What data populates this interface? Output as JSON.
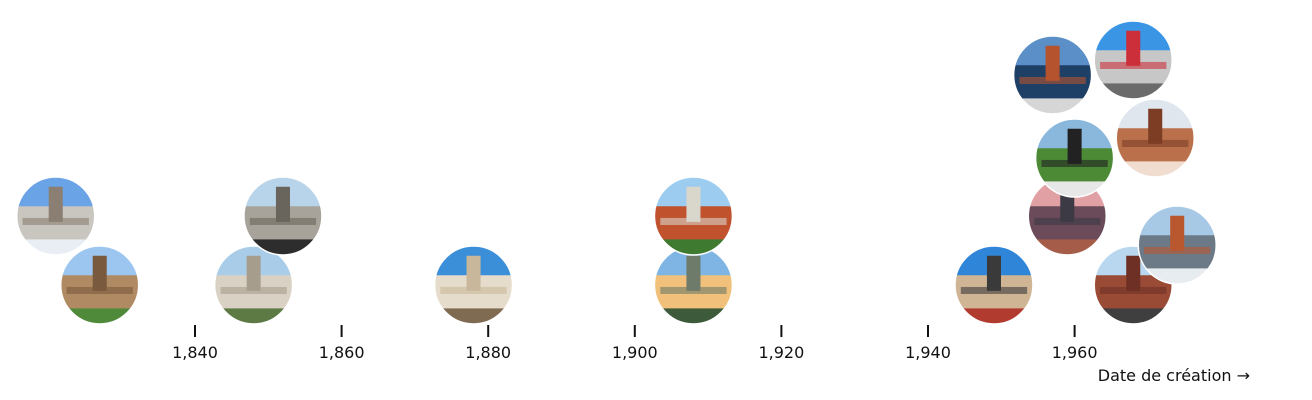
{
  "chart_data": {
    "type": "scatter",
    "subtype": "beeswarm-of-photos",
    "x_ticks": [
      "1,840",
      "1,860",
      "1,880",
      "1,900",
      "1,920",
      "1,940",
      "1,960"
    ],
    "xlim": [
      1818,
      1992
    ],
    "x_axis_title": "Date de création →",
    "grid": false,
    "points": [
      {
        "year": 1821,
        "stack": 1,
        "photo": "domed-stone-building-spring"
      },
      {
        "year": 1827,
        "stack": 0,
        "photo": "gothic-college-tower-lawn"
      },
      {
        "year": 1848,
        "stack": 0,
        "photo": "neoclassical-columned-hall"
      },
      {
        "year": 1852,
        "stack": 1,
        "photo": "victorian-stone-tower-iron-fence"
      },
      {
        "year": 1878,
        "stack": 0,
        "photo": "art-deco-pavilion-tower"
      },
      {
        "year": 1908,
        "stack": 0,
        "photo": "modern-campus-aerial-sunset"
      },
      {
        "year": 1908,
        "stack": 1,
        "photo": "university-sign-brick-monolith"
      },
      {
        "year": 1949,
        "stack": 0,
        "photo": "modern-brick-glass-building"
      },
      {
        "year": 1959,
        "stack": 1,
        "photo": "campus-at-dusk-pink-sky"
      },
      {
        "year": 1960,
        "stack": 3,
        "photo": "waterloo-letters-sign"
      },
      {
        "year": 1957,
        "stack": 5,
        "photo": "brick-and-glass-facade-sky"
      },
      {
        "year": 1968,
        "stack": 6,
        "photo": "red-modern-building-walkway"
      },
      {
        "year": 1968,
        "stack": 0,
        "photo": "brick-tower-block-trees"
      },
      {
        "year": 1974,
        "stack": 2,
        "photo": "glass-tower-brick-fins"
      },
      {
        "year": 1971,
        "stack": 4,
        "photo": "perforated-copper-facade"
      }
    ]
  }
}
